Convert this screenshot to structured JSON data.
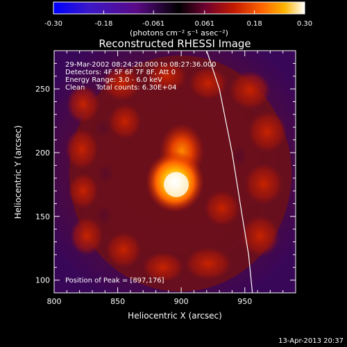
{
  "colorbar": {
    "min": -0.3,
    "max": 0.3,
    "ticks": [
      "-0.30",
      "-0.18",
      "-0.061",
      "0.061",
      "0.18",
      "0.30"
    ],
    "unit_label": "(photons cm⁻² s⁻¹ asec⁻²)",
    "colors": [
      "#0000ff",
      "#3b18c8",
      "#5a0a86",
      "#000000",
      "#6a0030",
      "#c31a00",
      "#ff6400",
      "#ffb400",
      "#ffffff"
    ]
  },
  "chart_data": {
    "type": "heatmap",
    "title": "Reconstructed RHESSI Image",
    "xlabel": "Heliocentric X (arcsec)",
    "ylabel": "Heliocentric Y (arcsec)",
    "xlim": [
      800,
      990
    ],
    "ylim": [
      90,
      280
    ],
    "xticks": [
      800,
      850,
      900,
      950
    ],
    "yticks": [
      100,
      150,
      200,
      250
    ],
    "info_lines": [
      "29-Mar-2002 08:24:20.000 to 08:27:36.000",
      "Detectors: 4F 5F 6F 7F 8F, Att 0",
      "Energy Range: 3.0 - 6.0 keV",
      "Clean     Total counts: 6.30E+04"
    ],
    "peak_label": "Position of Peak = [897,176]",
    "peak": [
      897,
      176
    ],
    "limb_curve": [
      [
        920,
        280
      ],
      [
        930,
        250
      ],
      [
        940,
        200
      ],
      [
        948,
        150
      ],
      [
        953,
        120
      ],
      [
        956,
        90
      ]
    ]
  },
  "footer": {
    "date": "13-Apr-2013 20:37"
  }
}
